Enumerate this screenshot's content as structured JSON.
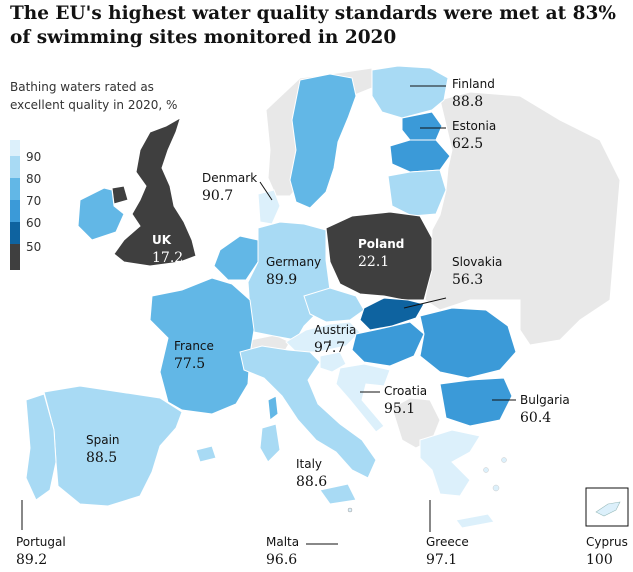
{
  "title": "The EU's highest water quality standards were met at 83% of swimming sites monitored in 2020",
  "legend": {
    "title": "Bathing waters rated as excellent quality in 2020, %",
    "ticks": [
      "90",
      "80",
      "70",
      "60",
      "50"
    ]
  },
  "colors": {
    "c90": "#dcf0fb",
    "c80": "#a8daf4",
    "c70": "#62b7e6",
    "c60": "#3b9ad8",
    "c50": "#0e63a0",
    "below": "#3f3f3f",
    "nodata": "#e8e8e8",
    "outline": "#ffffff"
  },
  "countries": [
    {
      "name": "Finland",
      "value": "88.8",
      "band": "c80"
    },
    {
      "name": "Estonia",
      "value": "62.5",
      "band": "c60"
    },
    {
      "name": "Denmark",
      "value": "90.7",
      "band": "c90"
    },
    {
      "name": "UK",
      "value": "17.2",
      "band": "below"
    },
    {
      "name": "Poland",
      "value": "22.1",
      "band": "below"
    },
    {
      "name": "Germany",
      "value": "89.9",
      "band": "c80"
    },
    {
      "name": "Slovakia",
      "value": "56.3",
      "band": "c50"
    },
    {
      "name": "Austria",
      "value": "97.7",
      "band": "c90"
    },
    {
      "name": "France",
      "value": "77.5",
      "band": "c70"
    },
    {
      "name": "Croatia",
      "value": "95.1",
      "band": "c90"
    },
    {
      "name": "Bulgaria",
      "value": "60.4",
      "band": "c60"
    },
    {
      "name": "Spain",
      "value": "88.5",
      "band": "c80"
    },
    {
      "name": "Italy",
      "value": "88.6",
      "band": "c80"
    },
    {
      "name": "Portugal",
      "value": "89.2",
      "band": "c80"
    },
    {
      "name": "Malta",
      "value": "96.6",
      "band": "c90"
    },
    {
      "name": "Greece",
      "value": "97.1",
      "band": "c90"
    },
    {
      "name": "Cyprus",
      "value": "100",
      "band": "c90"
    }
  ]
}
